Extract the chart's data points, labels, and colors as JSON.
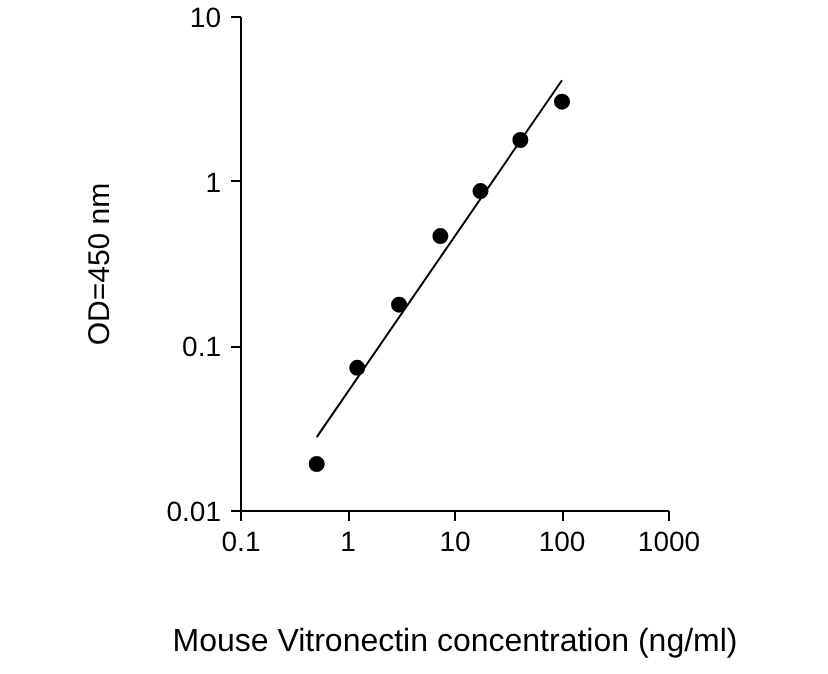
{
  "chart_data": {
    "type": "scatter",
    "xlabel": "Mouse Vitronectin concentration (ng/ml)",
    "ylabel": "OD=450 nm",
    "log": "xy",
    "xlim": [
      0.1,
      1000
    ],
    "ylim": [
      0.01,
      10
    ],
    "xticks": [
      0.1,
      1,
      10,
      100,
      1000
    ],
    "yticks": [
      0.01,
      0.1,
      1,
      10
    ],
    "grid": false,
    "marker": "circle",
    "x": [
      0.51,
      1.22,
      3.0,
      7.3,
      17.3,
      40.8,
      100
    ],
    "series": [
      {
        "color": "#000000",
        "values": [
          0.0193,
          0.074,
          0.179,
          0.467,
          0.877,
          1.79,
          3.06
        ]
      },
      {
        "type": "line",
        "color": "#000000",
        "x": [
          0.51,
          100
        ],
        "values": [
          0.0281,
          4.13
        ],
        "line_style": "solid",
        "marker": "none"
      }
    ]
  }
}
